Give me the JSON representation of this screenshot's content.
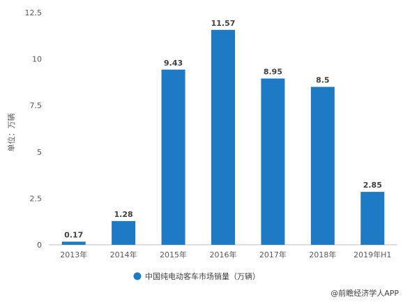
{
  "chart_data": {
    "type": "bar",
    "ylabel": "单位：万辆",
    "categories": [
      "2013年",
      "2014年",
      "2015年",
      "2016年",
      "2017年",
      "2018年",
      "2019年H1"
    ],
    "series": [
      {
        "name": "中国纯电动客车市场销量（万辆）",
        "values": [
          0.17,
          1.28,
          9.43,
          11.57,
          8.95,
          8.5,
          2.85
        ],
        "color": "#1f7ac6"
      }
    ],
    "data_labels": [
      "0.17",
      "1.28",
      "9.43",
      "11.57",
      "8.95",
      "8.5",
      "2.85"
    ],
    "yticks": [
      "0",
      "2.5",
      "5",
      "7.5",
      "10",
      "12.5"
    ],
    "ylim": [
      0,
      12.5
    ],
    "grid": false,
    "legend_position": "bottom-center"
  },
  "watermark": "@前瞻经济学人APP"
}
